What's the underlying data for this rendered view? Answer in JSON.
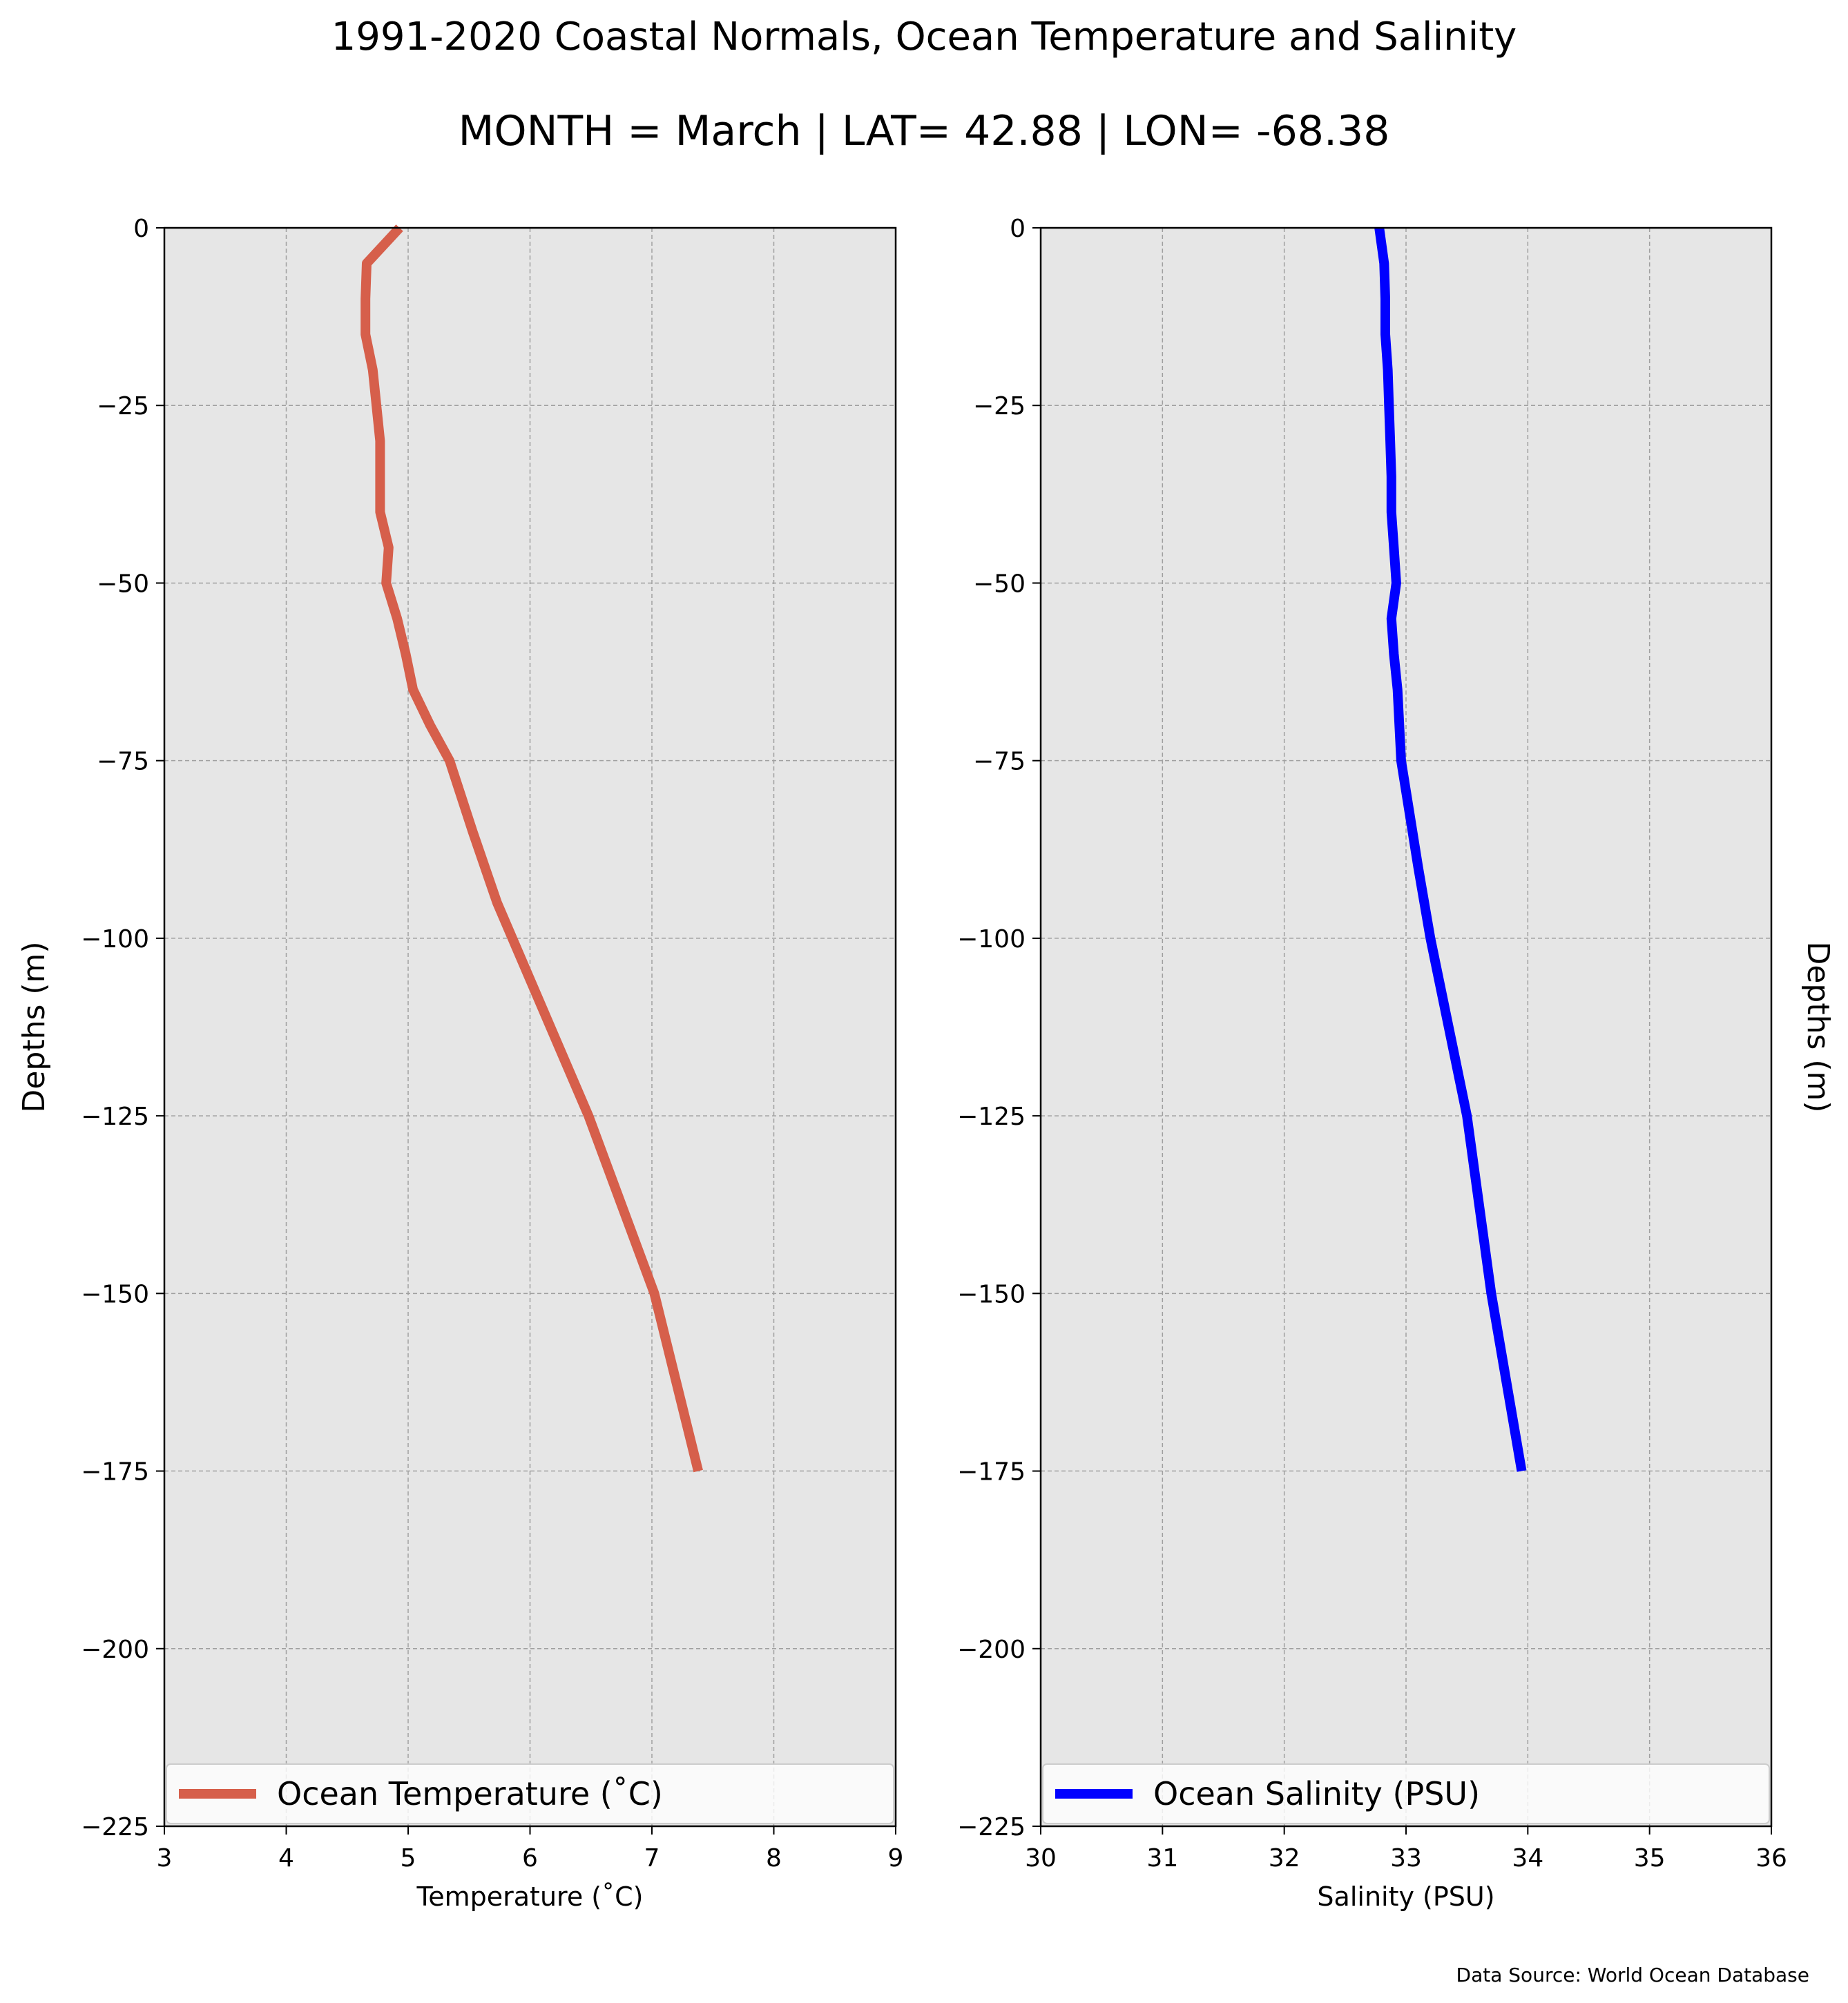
{
  "figure": {
    "title": "1991-2020 Coastal Normals, Ocean Temperature and Salinity",
    "subtitle": "MONTH = March | LAT= 42.88 | LON= -68.38",
    "source": "Data Source: World Ocean Database"
  },
  "colors": {
    "temperature": "#d65f4b",
    "salinity": "#0000ff",
    "panel_bg": "#e6e6e6",
    "grid": "#a0a0a0"
  },
  "chart_data": [
    {
      "type": "line",
      "xlabel": "Temperature ($^\\circ$C)",
      "xlabel_display": "Temperature (˚C)",
      "ylabel": "Depths (m)",
      "ylabel_side": "left",
      "xlim": [
        3,
        9
      ],
      "ylim": [
        -225,
        0
      ],
      "xticks": [
        3,
        4,
        5,
        6,
        7,
        8,
        9
      ],
      "yticks": [
        0,
        -25,
        -50,
        -75,
        -100,
        -125,
        -150,
        -175,
        -200,
        -225
      ],
      "grid": true,
      "legend": "bottom",
      "series": [
        {
          "name": "Ocean Temperature (˚C)",
          "color": "#d65f4b",
          "x": [
            4.93,
            4.66,
            4.65,
            4.65,
            4.71,
            4.77,
            4.77,
            4.77,
            4.84,
            4.82,
            4.91,
            4.98,
            5.04,
            5.18,
            5.34,
            5.53,
            5.73,
            6.48,
            7.02,
            7.38
          ],
          "y": [
            0,
            -5,
            -10,
            -15,
            -20,
            -30,
            -35,
            -40,
            -45,
            -50,
            -55,
            -60,
            -65,
            -70,
            -75,
            -85,
            -95,
            -125,
            -150,
            -175
          ]
        }
      ]
    },
    {
      "type": "line",
      "xlabel": "Salinity (PSU)",
      "ylabel": "Depths (m)",
      "ylabel_side": "right",
      "xlim": [
        30,
        36
      ],
      "ylim": [
        -225,
        0
      ],
      "xticks": [
        30,
        31,
        32,
        33,
        34,
        35,
        36
      ],
      "yticks": [
        0,
        -25,
        -50,
        -75,
        -100,
        -125,
        -150,
        -175,
        -200,
        -225
      ],
      "grid": true,
      "legend": "bottom",
      "series": [
        {
          "name": "Ocean Salinity (PSU)",
          "color": "#0000ff",
          "x": [
            32.78,
            32.82,
            32.83,
            32.83,
            32.85,
            32.86,
            32.87,
            32.88,
            32.88,
            32.9,
            32.92,
            32.88,
            32.9,
            32.93,
            32.96,
            33.1,
            33.2,
            33.5,
            33.7,
            33.95
          ],
          "y": [
            0,
            -5,
            -10,
            -15,
            -20,
            -25,
            -30,
            -35,
            -40,
            -45,
            -50,
            -55,
            -60,
            -65,
            -75,
            -90,
            -100,
            -125,
            -150,
            -175
          ]
        }
      ]
    }
  ]
}
